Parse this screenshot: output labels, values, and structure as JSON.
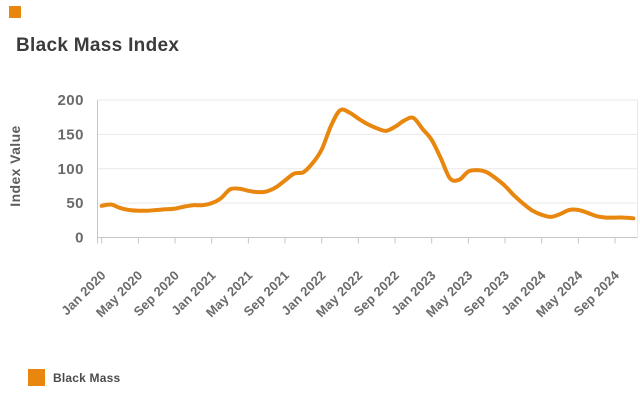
{
  "brand": {
    "color": "#E8860D"
  },
  "header": {
    "title": "Black Mass Index"
  },
  "legend": {
    "label": "Black Mass",
    "swatch_color": "#E8860D"
  },
  "chart_data": {
    "type": "line",
    "title": "Black Mass Index",
    "xlabel": "",
    "ylabel": "Index Value",
    "ylim": [
      0,
      200
    ],
    "yticks": [
      0,
      50,
      100,
      150,
      200
    ],
    "x_tick_labels": [
      "Jan 2020",
      "May 2020",
      "Sep 2020",
      "Jan 2021",
      "May 2021",
      "Sep 2021",
      "Jan 2022",
      "May 2022",
      "Sep 2022",
      "Jan 2023",
      "May 2023",
      "Sep 2023",
      "Jan 2024",
      "May 2024",
      "Sep 2024"
    ],
    "grid": "horizontal",
    "legend_position": "bottom-left",
    "line_color": "#E8860D",
    "series": [
      {
        "name": "Black Mass",
        "x_start": "Jan 2020",
        "x_interval": "monthly",
        "x_end": "Nov 2024",
        "values": [
          46,
          48,
          43,
          40,
          39,
          39,
          40,
          41,
          42,
          45,
          47,
          47,
          50,
          57,
          70,
          71,
          68,
          66,
          67,
          73,
          83,
          93,
          95,
          108,
          128,
          162,
          185,
          182,
          173,
          165,
          159,
          155,
          161,
          170,
          174,
          158,
          142,
          115,
          86,
          84,
          96,
          98,
          95,
          86,
          75,
          61,
          49,
          39,
          33,
          30,
          34,
          40,
          40,
          36,
          31,
          29,
          29,
          29,
          28
        ]
      }
    ]
  }
}
